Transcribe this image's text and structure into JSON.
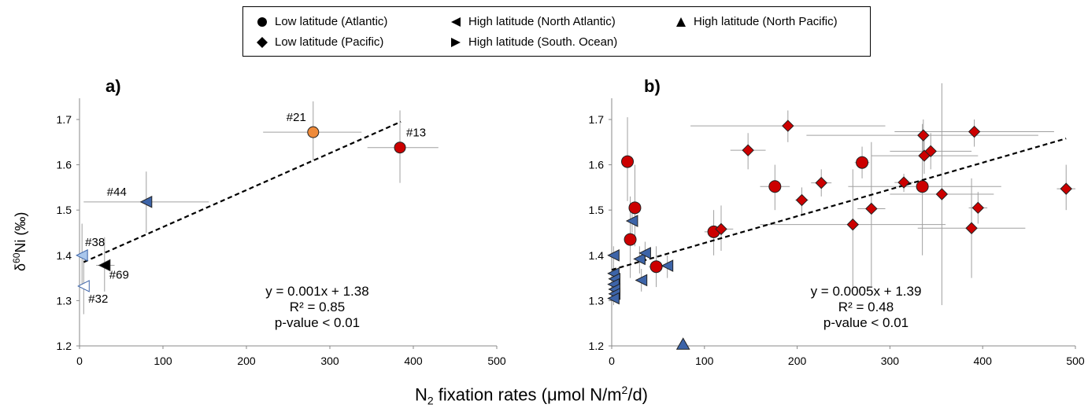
{
  "legend": {
    "items": [
      {
        "label": "Low latitude (Atlantic)",
        "marker": "circle"
      },
      {
        "label": "High latitude (North Atlantic)",
        "marker": "triangle-left"
      },
      {
        "label": "High latitude (North Pacific)",
        "marker": "triangle-up"
      },
      {
        "label": "Low latitude (Pacific)",
        "marker": "diamond"
      },
      {
        "label": "High latitude (South. Ocean)",
        "marker": "triangle-right"
      }
    ]
  },
  "axis_titles": {
    "y_prefix": "δ",
    "y_sup": "60",
    "y_rest": "Ni (‰)",
    "x_pre": "N",
    "x_sub": "2",
    "x_mid": " fixation rates (μmol N/m",
    "x_sup": "2",
    "x_post": "/d)"
  },
  "chart_data": [
    {
      "type": "scatter",
      "panel_label": "a)",
      "xlim": [
        0,
        500
      ],
      "ylim": [
        1.2,
        1.75
      ],
      "x_ticks": [
        "0",
        "100",
        "200",
        "300",
        "400",
        "500"
      ],
      "y_ticks": [
        "1.2",
        "1.3",
        "1.4",
        "1.5",
        "1.6",
        "1.7"
      ],
      "equation": "y = 0.001x + 1.38",
      "r2": "R² = 0.85",
      "pvalue": "p-value < 0.01",
      "trend": {
        "x": [
          5,
          385
        ],
        "y": [
          1.385,
          1.695
        ]
      },
      "colors": {
        "red": "#cc0000",
        "orange": "#ee8a3a",
        "blue": "#3d64a8",
        "light_blue": "#a9c6ec",
        "white": "#ffffff",
        "black": "#000000"
      },
      "points": [
        {
          "label": "#21",
          "x": 280,
          "y": 1.672,
          "xerr": [
            220,
            338
          ],
          "yerr": [
            1.61,
            1.74
          ],
          "marker": "circle",
          "fill": "#ee8a3a"
        },
        {
          "label": "#13",
          "x": 384,
          "y": 1.638,
          "xerr": [
            345,
            430
          ],
          "yerr": [
            1.56,
            1.72
          ],
          "marker": "circle",
          "fill": "#cc0000"
        },
        {
          "label": "#44",
          "x": 80,
          "y": 1.518,
          "xerr": [
            5,
            155
          ],
          "yerr": [
            1.45,
            1.585
          ],
          "marker": "triangle-left",
          "fill": "#3d64a8"
        },
        {
          "label": "#38",
          "x": 3,
          "y": 1.4,
          "xerr": [
            0,
            10
          ],
          "yerr": [
            1.33,
            1.47
          ],
          "marker": "triangle-left",
          "fill": "#a9c6ec"
        },
        {
          "label": "#69",
          "x": 30,
          "y": 1.378,
          "xerr": [
            20,
            42
          ],
          "yerr": [
            1.32,
            1.44
          ],
          "marker": "triangle-left",
          "fill": "#000000"
        },
        {
          "label": "#32",
          "x": 5,
          "y": 1.332,
          "xerr": [
            0,
            10
          ],
          "yerr": [
            1.27,
            1.39
          ],
          "marker": "triangle-left",
          "fill": "#ffffff"
        }
      ]
    },
    {
      "type": "scatter",
      "panel_label": "b)",
      "xlim": [
        0,
        500
      ],
      "ylim": [
        1.2,
        1.75
      ],
      "x_ticks": [
        "0",
        "100",
        "200",
        "300",
        "400",
        "500"
      ],
      "y_ticks": [
        "1.2",
        "1.3",
        "1.4",
        "1.5",
        "1.6",
        "1.7"
      ],
      "equation": "y = 0.0005x + 1.39",
      "r2": "R² = 0.48",
      "pvalue": "p-value < 0.01",
      "trend": {
        "x": [
          0,
          490
        ],
        "y": [
          1.368,
          1.658
        ]
      },
      "points": [
        {
          "x": 17,
          "y": 1.607,
          "xerr": [
            12,
            22
          ],
          "yerr": [
            1.52,
            1.705
          ],
          "marker": "circle",
          "fill": "#cc0000"
        },
        {
          "x": 25,
          "y": 1.505,
          "xerr": [
            20,
            30
          ],
          "yerr": [
            1.42,
            1.6
          ],
          "marker": "circle",
          "fill": "#cc0000"
        },
        {
          "x": 20,
          "y": 1.435,
          "xerr": [
            15,
            25
          ],
          "yerr": [
            1.35,
            1.53
          ],
          "marker": "circle",
          "fill": "#cc0000"
        },
        {
          "x": 48,
          "y": 1.375,
          "xerr": [
            40,
            56
          ],
          "yerr": [
            1.33,
            1.42
          ],
          "marker": "circle",
          "fill": "#cc0000"
        },
        {
          "x": 110,
          "y": 1.452,
          "xerr": [
            100,
            120
          ],
          "yerr": [
            1.4,
            1.5
          ],
          "marker": "circle",
          "fill": "#cc0000"
        },
        {
          "x": 176,
          "y": 1.552,
          "xerr": [
            160,
            192
          ],
          "yerr": [
            1.5,
            1.6
          ],
          "marker": "circle",
          "fill": "#cc0000"
        },
        {
          "x": 270,
          "y": 1.605,
          "xerr": [
            262,
            278
          ],
          "yerr": [
            1.57,
            1.64
          ],
          "marker": "circle",
          "fill": "#cc0000"
        },
        {
          "x": 335,
          "y": 1.552,
          "xerr": [
            255,
            420
          ],
          "yerr": [
            1.4,
            1.69
          ],
          "marker": "circle",
          "fill": "#cc0000"
        },
        {
          "x": 118,
          "y": 1.458,
          "xerr": [
            105,
            131
          ],
          "yerr": [
            1.41,
            1.51
          ],
          "marker": "diamond",
          "fill": "#cc0000"
        },
        {
          "x": 147,
          "y": 1.632,
          "xerr": [
            128,
            166
          ],
          "yerr": [
            1.59,
            1.67
          ],
          "marker": "diamond",
          "fill": "#cc0000"
        },
        {
          "x": 190,
          "y": 1.686,
          "xerr": [
            85,
            295
          ],
          "yerr": [
            1.65,
            1.72
          ],
          "marker": "diamond",
          "fill": "#cc0000"
        },
        {
          "x": 205,
          "y": 1.522,
          "xerr": [
            198,
            212
          ],
          "yerr": [
            1.49,
            1.55
          ],
          "marker": "diamond",
          "fill": "#cc0000"
        },
        {
          "x": 226,
          "y": 1.56,
          "xerr": [
            215,
            237
          ],
          "yerr": [
            1.53,
            1.59
          ],
          "marker": "diamond",
          "fill": "#cc0000"
        },
        {
          "x": 260,
          "y": 1.468,
          "xerr": [
            160,
            360
          ],
          "yerr": [
            1.33,
            1.59
          ],
          "marker": "diamond",
          "fill": "#cc0000"
        },
        {
          "x": 280,
          "y": 1.503,
          "xerr": [
            265,
            295
          ],
          "yerr": [
            1.33,
            1.65
          ],
          "marker": "diamond",
          "fill": "#cc0000"
        },
        {
          "x": 315,
          "y": 1.561,
          "xerr": [
            305,
            325
          ],
          "yerr": [
            1.54,
            1.58
          ],
          "marker": "diamond",
          "fill": "#cc0000"
        },
        {
          "x": 336,
          "y": 1.665,
          "xerr": [
            210,
            460
          ],
          "yerr": [
            1.63,
            1.7
          ],
          "marker": "diamond",
          "fill": "#cc0000"
        },
        {
          "x": 337,
          "y": 1.62,
          "xerr": [
            280,
            395
          ],
          "yerr": [
            1.58,
            1.66
          ],
          "marker": "diamond",
          "fill": "#cc0000"
        },
        {
          "x": 344,
          "y": 1.63,
          "xerr": [
            300,
            388
          ],
          "yerr": [
            1.59,
            1.67
          ],
          "marker": "diamond",
          "fill": "#cc0000"
        },
        {
          "x": 356,
          "y": 1.535,
          "xerr": [
            300,
            412
          ],
          "yerr": [
            1.29,
            1.78
          ],
          "marker": "diamond",
          "fill": "#cc0000"
        },
        {
          "x": 388,
          "y": 1.46,
          "xerr": [
            330,
            446
          ],
          "yerr": [
            1.35,
            1.57
          ],
          "marker": "diamond",
          "fill": "#cc0000"
        },
        {
          "x": 391,
          "y": 1.673,
          "xerr": [
            305,
            477
          ],
          "yerr": [
            1.64,
            1.7
          ],
          "marker": "diamond",
          "fill": "#cc0000"
        },
        {
          "x": 395,
          "y": 1.505,
          "xerr": [
            385,
            405
          ],
          "yerr": [
            1.47,
            1.54
          ],
          "marker": "diamond",
          "fill": "#cc0000"
        },
        {
          "x": 490,
          "y": 1.547,
          "xerr": [
            480,
            500
          ],
          "yerr": [
            1.5,
            1.6
          ],
          "marker": "diamond",
          "fill": "#cc0000"
        },
        {
          "x": 2,
          "y": 1.4,
          "xerr": [
            0,
            6
          ],
          "yerr": [
            1.38,
            1.42
          ],
          "marker": "triangle-left",
          "fill": "#3d64a8"
        },
        {
          "x": 2,
          "y": 1.36,
          "xerr": [
            0,
            5
          ],
          "yerr": [
            1.34,
            1.38
          ],
          "marker": "triangle-left",
          "fill": "#3d64a8"
        },
        {
          "x": 3,
          "y": 1.348,
          "xerr": [
            0,
            6
          ],
          "yerr": [
            1.33,
            1.37
          ],
          "marker": "triangle-left",
          "fill": "#3d64a8"
        },
        {
          "x": 2,
          "y": 1.336,
          "xerr": [
            0,
            5
          ],
          "yerr": [
            1.32,
            1.35
          ],
          "marker": "triangle-left",
          "fill": "#3d64a8"
        },
        {
          "x": 3,
          "y": 1.325,
          "xerr": [
            0,
            6
          ],
          "yerr": [
            1.31,
            1.34
          ],
          "marker": "triangle-left",
          "fill": "#3d64a8"
        },
        {
          "x": 3,
          "y": 1.315,
          "xerr": [
            0,
            6
          ],
          "yerr": [
            1.3,
            1.33
          ],
          "marker": "triangle-left",
          "fill": "#3d64a8"
        },
        {
          "x": 2,
          "y": 1.305,
          "xerr": [
            0,
            5
          ],
          "yerr": [
            1.29,
            1.32
          ],
          "marker": "triangle-left",
          "fill": "#3d64a8"
        },
        {
          "x": 22,
          "y": 1.476,
          "xerr": [
            17,
            27
          ],
          "yerr": [
            1.45,
            1.5
          ],
          "marker": "triangle-left",
          "fill": "#3d64a8"
        },
        {
          "x": 30,
          "y": 1.392,
          "xerr": [
            24,
            36
          ],
          "yerr": [
            1.36,
            1.42
          ],
          "marker": "triangle-left",
          "fill": "#3d64a8"
        },
        {
          "x": 36,
          "y": 1.405,
          "xerr": [
            30,
            42
          ],
          "yerr": [
            1.38,
            1.43
          ],
          "marker": "triangle-left",
          "fill": "#3d64a8"
        },
        {
          "x": 32,
          "y": 1.345,
          "xerr": [
            26,
            38
          ],
          "yerr": [
            1.32,
            1.37
          ],
          "marker": "triangle-left",
          "fill": "#3d64a8"
        },
        {
          "x": 60,
          "y": 1.377,
          "xerr": [
            54,
            66
          ],
          "yerr": [
            1.35,
            1.4
          ],
          "marker": "triangle-left",
          "fill": "#3d64a8"
        },
        {
          "x": 77,
          "y": 1.203,
          "xerr": [
            77,
            77
          ],
          "yerr": [
            1.203,
            1.203
          ],
          "marker": "triangle-up",
          "fill": "#3d64a8"
        }
      ]
    }
  ]
}
